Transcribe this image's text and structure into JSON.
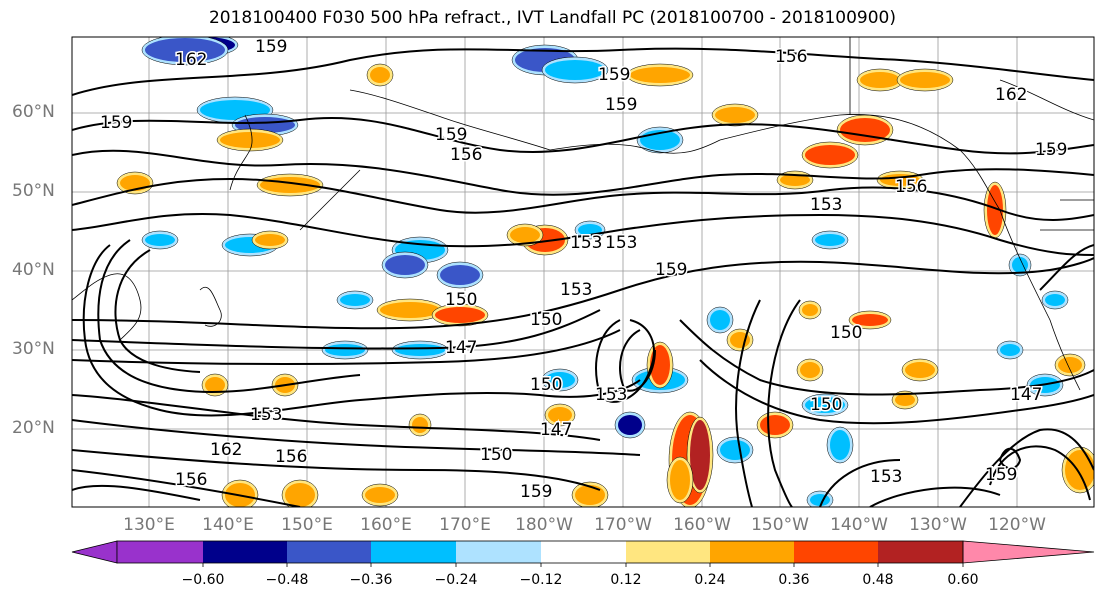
{
  "title": "2018100400 F030 500 hPa refract., IVT Landfall PC (2018100700 - 2018100900)",
  "map": {
    "lat_ticks": [
      "60°N",
      "50°N",
      "40°N",
      "30°N",
      "20°N"
    ],
    "lon_ticks": [
      "130°E",
      "140°E",
      "150°E",
      "160°E",
      "170°E",
      "180°W",
      "170°W",
      "160°W",
      "150°W",
      "140°W",
      "130°W",
      "120°W"
    ],
    "contour_labels": [
      "162",
      "159",
      "159",
      "156",
      "159",
      "159",
      "162",
      "159",
      "156",
      "159",
      "153",
      "156",
      "153",
      "153",
      "159",
      "150",
      "150",
      "153",
      "147",
      "150",
      "150",
      "150",
      "147",
      "153",
      "147",
      "150",
      "159",
      "153",
      "156",
      "162",
      "156",
      "159",
      "153"
    ],
    "colors": {
      "land_outline": "#000000",
      "grid": "#999999"
    }
  },
  "colorbar": {
    "ticks": [
      "−0.60",
      "−0.48",
      "−0.36",
      "−0.24",
      "−0.12",
      "0.12",
      "0.24",
      "0.36",
      "0.48",
      "0.60"
    ],
    "colors": [
      "#9932cc",
      "#00008b",
      "#3a56c8",
      "#00bfff",
      "#aee2ff",
      "#ffffff",
      "#ffe680",
      "#ffa500",
      "#ff4500",
      "#b22222",
      "#ff88aa"
    ]
  }
}
